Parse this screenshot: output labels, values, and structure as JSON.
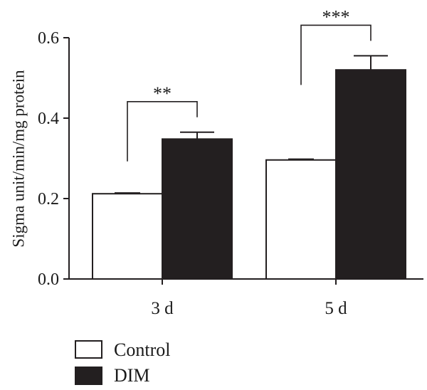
{
  "chart_data": {
    "type": "bar",
    "ylabel": "Sigma unit/min/mg protein",
    "ylim": [
      0,
      0.6
    ],
    "yticks": [
      "0.0",
      "0.2",
      "0.4",
      "0.6"
    ],
    "categories": [
      "3 d",
      "5 d"
    ],
    "series": [
      {
        "name": "Control",
        "values": [
          0.212,
          0.296
        ],
        "errors": [
          0.002,
          0.002
        ],
        "color": "#ffffff"
      },
      {
        "name": "DIM",
        "values": [
          0.348,
          0.52
        ],
        "errors": [
          0.017,
          0.035
        ],
        "color": "#231f20"
      }
    ],
    "significance": [
      {
        "category": "3 d",
        "label": "**"
      },
      {
        "category": "5 d",
        "label": "***"
      }
    ],
    "grid": false,
    "legend_position": "bottom-left"
  }
}
